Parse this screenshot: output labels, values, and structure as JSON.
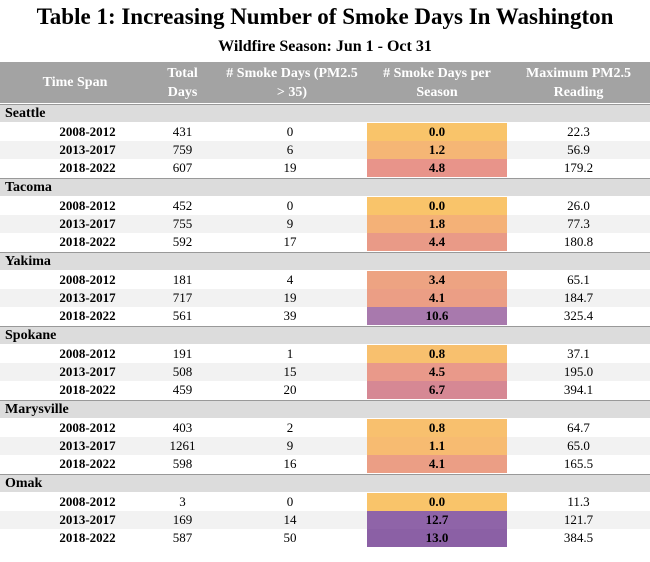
{
  "title": "Table 1: Increasing Number of Smoke Days In Washington",
  "subtitle": "Wildfire Season: Jun 1 - Oct 31",
  "table": {
    "columns": [
      "Time Span",
      "Total Days",
      "# Smoke Days (PM2.5 > 35)",
      "# Smoke Days per Season",
      "Maximum PM2.5 Reading"
    ],
    "groups": [
      {
        "name": "Seattle",
        "rows": [
          {
            "cells": [
              "2008-2012",
              "431",
              "0",
              "0.0",
              "22.3"
            ],
            "color": "#f9c46a"
          },
          {
            "cells": [
              "2013-2017",
              "759",
              "6",
              "1.2",
              "56.9"
            ],
            "color": "#f5b675"
          },
          {
            "cells": [
              "2018-2022",
              "607",
              "19",
              "4.8",
              "179.2"
            ],
            "color": "#e8948a"
          }
        ]
      },
      {
        "name": "Tacoma",
        "rows": [
          {
            "cells": [
              "2008-2012",
              "452",
              "0",
              "0.0",
              "26.0"
            ],
            "color": "#f9c46a"
          },
          {
            "cells": [
              "2013-2017",
              "755",
              "9",
              "1.8",
              "77.3"
            ],
            "color": "#f4b177"
          },
          {
            "cells": [
              "2018-2022",
              "592",
              "17",
              "4.4",
              "180.8"
            ],
            "color": "#e99a87"
          }
        ]
      },
      {
        "name": "Yakima",
        "rows": [
          {
            "cells": [
              "2008-2012",
              "181",
              "4",
              "3.4",
              "65.1"
            ],
            "color": "#eda382"
          },
          {
            "cells": [
              "2013-2017",
              "717",
              "19",
              "4.1",
              "184.7"
            ],
            "color": "#eb9e85"
          },
          {
            "cells": [
              "2018-2022",
              "561",
              "39",
              "10.6",
              "325.4"
            ],
            "color": "#a879ad"
          }
        ]
      },
      {
        "name": "Spokane",
        "rows": [
          {
            "cells": [
              "2008-2012",
              "191",
              "1",
              "0.8",
              "37.1"
            ],
            "color": "#f8c06e"
          },
          {
            "cells": [
              "2013-2017",
              "508",
              "15",
              "4.5",
              "195.0"
            ],
            "color": "#e9998a"
          },
          {
            "cells": [
              "2018-2022",
              "459",
              "20",
              "6.7",
              "394.1"
            ],
            "color": "#d68894"
          }
        ]
      },
      {
        "name": "Marysville",
        "rows": [
          {
            "cells": [
              "2008-2012",
              "403",
              "2",
              "0.8",
              "64.7"
            ],
            "color": "#f8c06e"
          },
          {
            "cells": [
              "2013-2017",
              "1261",
              "9",
              "1.1",
              "65.0"
            ],
            "color": "#f7bb71"
          },
          {
            "cells": [
              "2018-2022",
              "598",
              "16",
              "4.1",
              "165.5"
            ],
            "color": "#eb9e85"
          }
        ]
      },
      {
        "name": "Omak",
        "rows": [
          {
            "cells": [
              "2008-2012",
              "3",
              "0",
              "0.0",
              "11.3"
            ],
            "color": "#f9c46a"
          },
          {
            "cells": [
              "2013-2017",
              "169",
              "14",
              "12.7",
              "121.7"
            ],
            "color": "#8f64a8"
          },
          {
            "cells": [
              "2018-2022",
              "587",
              "50",
              "13.0",
              "384.5"
            ],
            "color": "#8b60a5"
          }
        ]
      }
    ]
  }
}
